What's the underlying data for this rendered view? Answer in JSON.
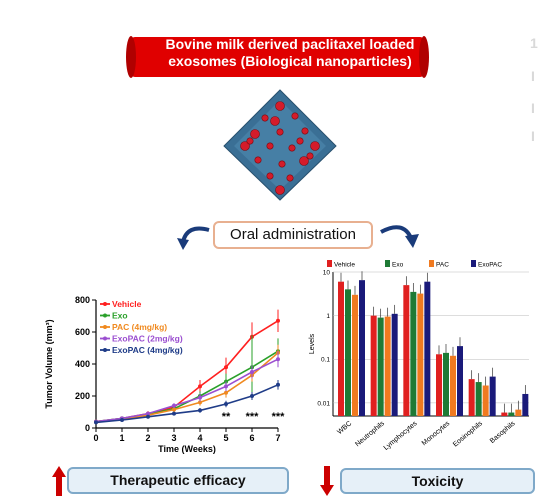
{
  "banner": {
    "line1": "Bovine milk derived paclitaxel loaded",
    "line2": "exosomes (Biological nanoparticles)",
    "color": "#e00000"
  },
  "center": {
    "image_icon": "nanoparticle-surface-image",
    "oral_label": "Oral administration"
  },
  "bottom": {
    "efficacy_label": "Therapeutic efficacy",
    "toxicity_label": "Toxicity",
    "up_arrow_color": "#cc0000",
    "down_arrow_color": "#cc0000"
  },
  "ghost_text": [
    "1",
    "I",
    "I",
    "I"
  ],
  "chart_data": [
    {
      "type": "line",
      "xlabel": "Time (Weeks)",
      "ylabel": "Tumor Volume (mm³)",
      "x": [
        0,
        1,
        2,
        3,
        4,
        5,
        6,
        7
      ],
      "xlim": [
        0,
        7
      ],
      "ylim": [
        0,
        800
      ],
      "yticks": [
        0,
        200,
        400,
        600,
        800
      ],
      "series": [
        {
          "name": "Vehicle",
          "color": "#ff2020",
          "values": [
            40,
            60,
            90,
            130,
            260,
            380,
            570,
            670
          ],
          "err": [
            10,
            10,
            15,
            20,
            40,
            60,
            90,
            70
          ]
        },
        {
          "name": "Exo",
          "color": "#2aa02a",
          "values": [
            40,
            60,
            85,
            120,
            200,
            290,
            380,
            480
          ],
          "err": [
            8,
            10,
            12,
            20,
            30,
            50,
            200,
            80
          ]
        },
        {
          "name": "PAC (4mg/kg)",
          "color": "#f08a20",
          "values": [
            40,
            55,
            80,
            115,
            160,
            220,
            330,
            470
          ],
          "err": [
            8,
            8,
            10,
            15,
            20,
            30,
            40,
            50
          ]
        },
        {
          "name": "ExoPAC (2mg/kg)",
          "color": "#9b4fd0",
          "values": [
            40,
            60,
            90,
            140,
            190,
            260,
            350,
            430
          ],
          "err": [
            8,
            8,
            10,
            15,
            25,
            30,
            40,
            50
          ]
        },
        {
          "name": "ExoPAC (4mg/kg)",
          "color": "#1f3c88",
          "values": [
            35,
            50,
            70,
            90,
            110,
            150,
            200,
            270
          ],
          "err": [
            5,
            6,
            8,
            10,
            15,
            20,
            25,
            30
          ]
        }
      ],
      "annotations": [
        {
          "x": 5,
          "text": "**"
        },
        {
          "x": 6,
          "text": "***"
        },
        {
          "x": 7,
          "text": "***"
        }
      ]
    },
    {
      "type": "bar",
      "ylabel": "Levels",
      "yscale": "log",
      "ylim": [
        0.005,
        10
      ],
      "yticks": [
        "10",
        "1",
        "0.1",
        "0.01"
      ],
      "categories": [
        "WBC",
        "Neutrophils",
        "Lymphocytes",
        "Monocytes",
        "Eosinophils",
        "Basophils"
      ],
      "series": [
        {
          "name": "Vehicle",
          "color": "#e02020",
          "values": [
            6.0,
            1.0,
            5.0,
            0.13,
            0.035,
            0.006
          ]
        },
        {
          "name": "Exo",
          "color": "#1e7a35",
          "values": [
            4.0,
            0.9,
            3.5,
            0.14,
            0.03,
            0.006
          ]
        },
        {
          "name": "PAC",
          "color": "#f07a20",
          "values": [
            3.0,
            0.95,
            3.2,
            0.12,
            0.025,
            0.007
          ]
        },
        {
          "name": "ExoPAC",
          "color": "#1a1a7a",
          "values": [
            6.5,
            1.1,
            6.0,
            0.2,
            0.04,
            0.016
          ]
        }
      ]
    }
  ]
}
